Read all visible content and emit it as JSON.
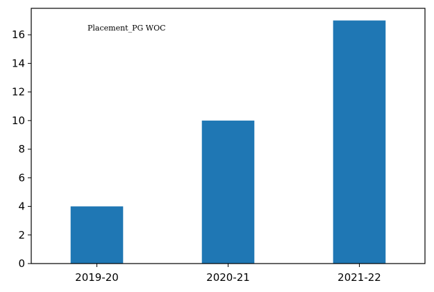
{
  "chart_data": {
    "type": "bar",
    "categories": [
      "2019-20",
      "2020-21",
      "2021-22"
    ],
    "values": [
      4,
      10,
      17
    ],
    "title": "",
    "xlabel": "",
    "ylabel": "",
    "ylim": [
      0,
      17.85
    ],
    "yticks": [
      "0",
      "2",
      "4",
      "6",
      "8",
      "10",
      "12",
      "14",
      "16"
    ],
    "grid": false,
    "bar_color": "#1f77b4",
    "annotation": "Placement_PG WOC"
  }
}
